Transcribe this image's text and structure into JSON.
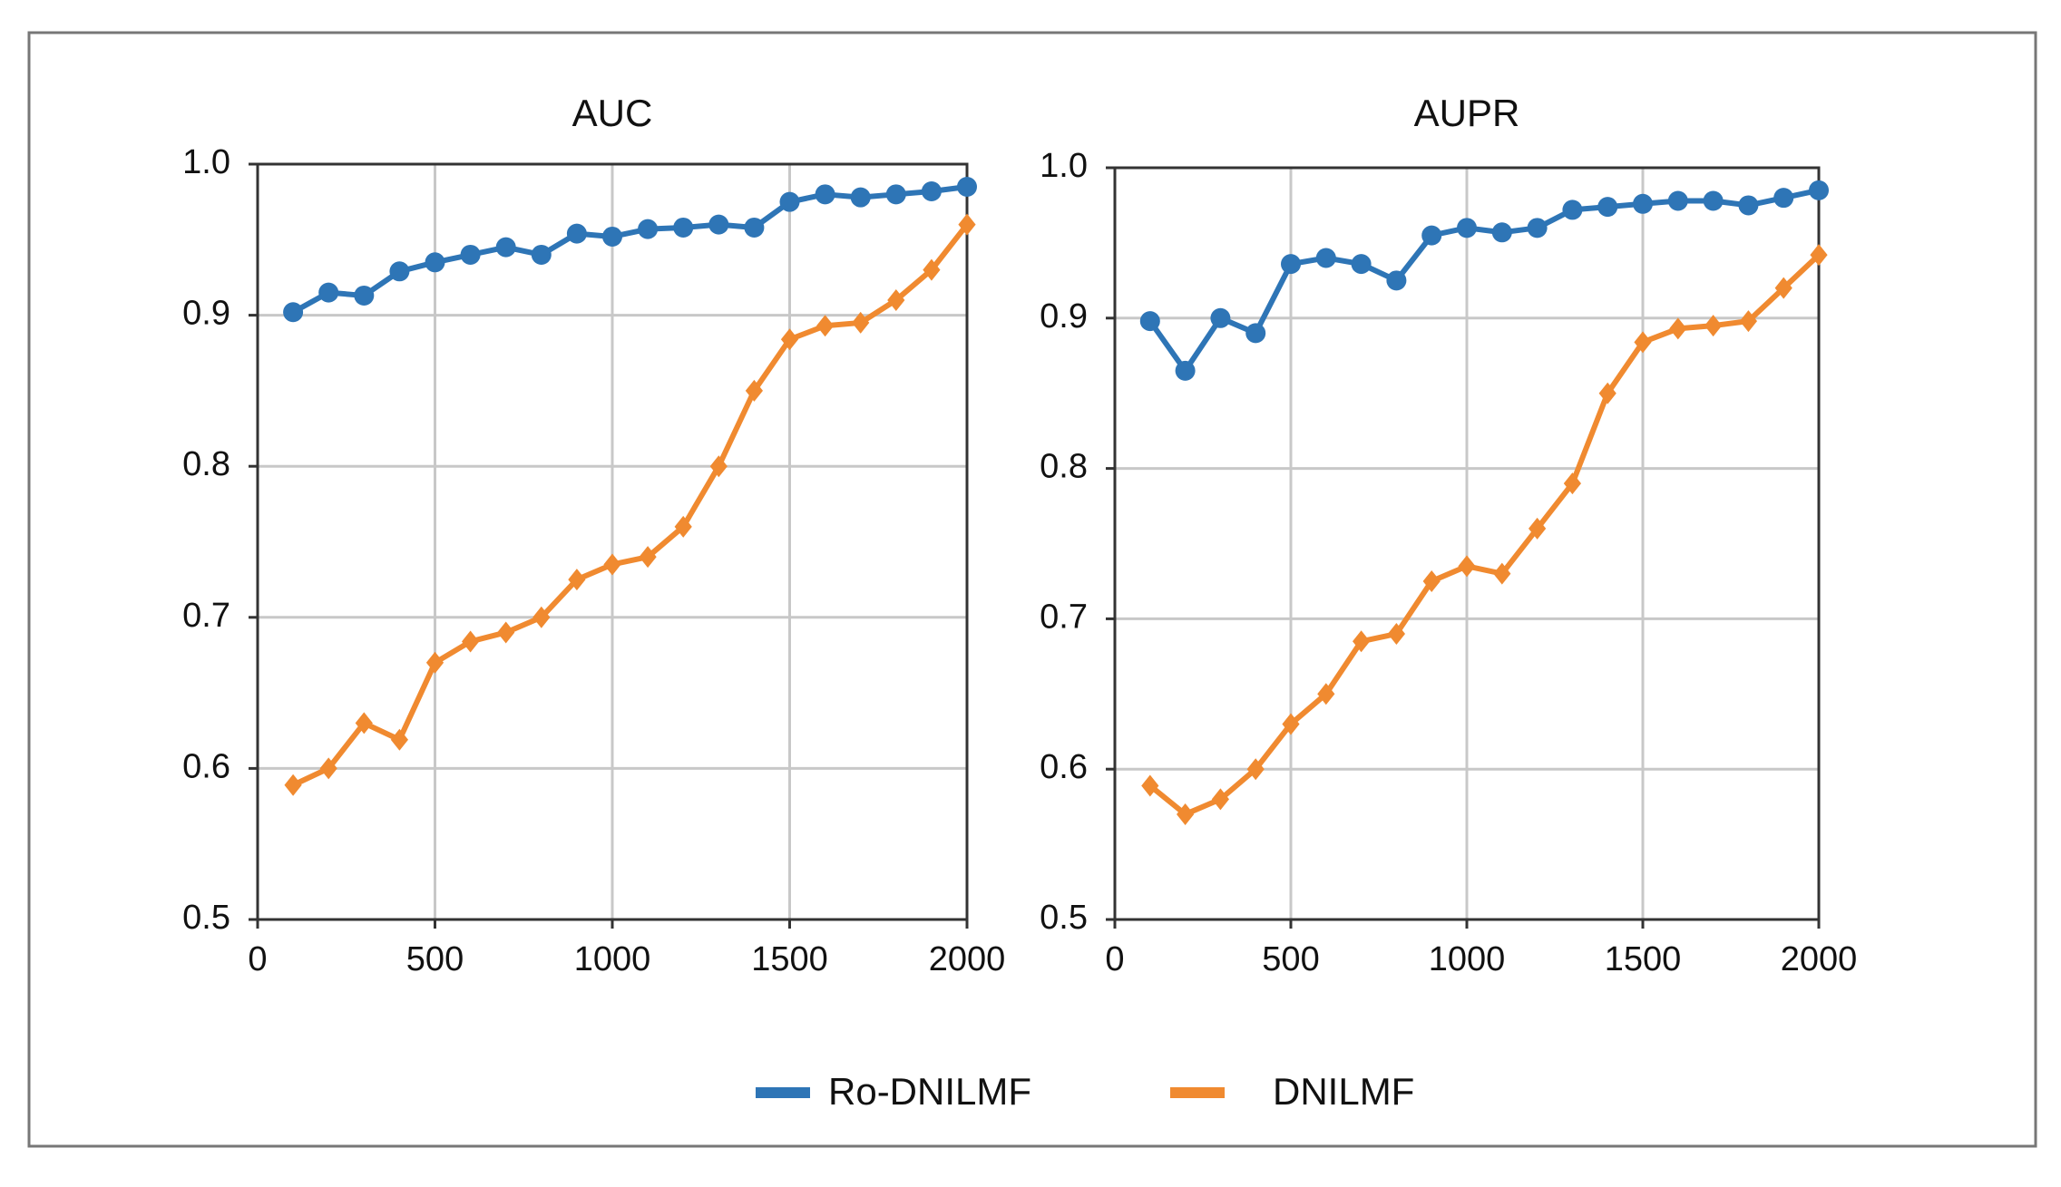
{
  "chart_data": [
    {
      "type": "line",
      "title": "AUC",
      "x": [
        100,
        200,
        300,
        400,
        500,
        600,
        700,
        800,
        900,
        1000,
        1100,
        1200,
        1300,
        1400,
        1500,
        1600,
        1700,
        1800,
        1900,
        2000
      ],
      "series": [
        {
          "name": "Ro-DNILMF",
          "color": "#2e75b6",
          "marker": "circle",
          "values": [
            0.902,
            0.915,
            0.913,
            0.929,
            0.935,
            0.94,
            0.945,
            0.94,
            0.954,
            0.952,
            0.957,
            0.958,
            0.96,
            0.958,
            0.975,
            0.98,
            0.978,
            0.98,
            0.982,
            0.985
          ]
        },
        {
          "name": "DNILMF",
          "color": "#f08a30",
          "marker": "diamond",
          "values": [
            0.589,
            0.6,
            0.63,
            0.619,
            0.67,
            0.684,
            0.69,
            0.7,
            0.725,
            0.735,
            0.74,
            0.76,
            0.8,
            0.85,
            0.884,
            0.893,
            0.895,
            0.91,
            0.93,
            0.96
          ]
        }
      ],
      "xlim": [
        0,
        2000
      ],
      "xticks": [
        0,
        500,
        1000,
        1500,
        2000
      ],
      "ylim": [
        0.5,
        1
      ],
      "yticks": [
        0.5,
        0.6,
        0.7,
        0.8,
        0.9,
        {
          "value": 1,
          "label": "1.0"
        }
      ],
      "grid": true
    },
    {
      "type": "line",
      "title": "AUPR",
      "x": [
        100,
        200,
        300,
        400,
        500,
        600,
        700,
        800,
        900,
        1000,
        1100,
        1200,
        1300,
        1400,
        1500,
        1600,
        1700,
        1800,
        1900,
        2000
      ],
      "series": [
        {
          "color": "#2e75b6",
          "marker": "circle",
          "values": [
            0.898,
            0.865,
            0.9,
            0.89,
            0.936,
            0.94,
            0.936,
            0.925,
            0.955,
            0.96,
            0.957,
            0.96,
            0.972,
            0.974,
            0.976,
            0.978,
            0.978,
            0.975,
            0.98,
            0.985
          ]
        },
        {
          "color": "#f08a30",
          "marker": "diamond",
          "values": [
            0.589,
            0.57,
            0.58,
            0.6,
            0.63,
            0.65,
            0.685,
            0.69,
            0.725,
            0.735,
            0.73,
            0.76,
            0.79,
            0.85,
            0.884,
            0.893,
            0.895,
            0.898,
            0.92,
            0.942
          ]
        }
      ],
      "xlim": [
        0,
        2000
      ],
      "xticks": [
        0,
        500,
        1000,
        1500,
        2000
      ],
      "ylim": [
        0.5,
        1
      ],
      "yticks": [
        0.5,
        0.6,
        0.7,
        0.8,
        0.9,
        {
          "value": 1,
          "label": "1.0"
        }
      ],
      "grid": true
    }
  ]
}
